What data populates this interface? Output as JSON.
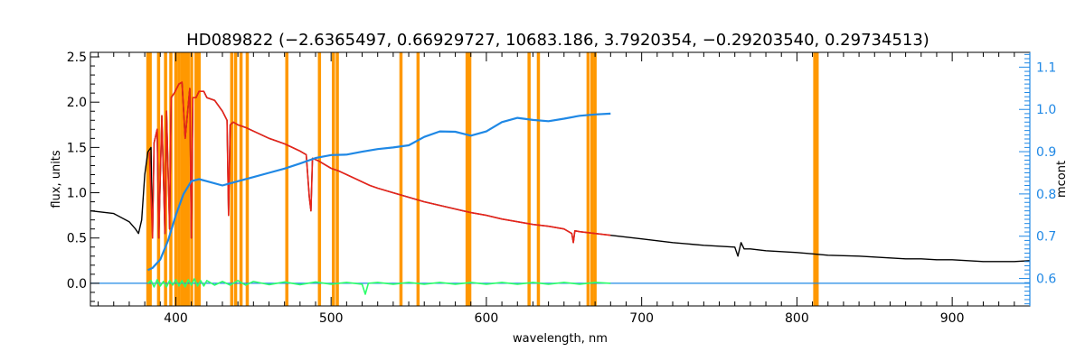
{
  "chart_data": {
    "type": "line",
    "title": "HD089822    (−2.6365497, 0.66929727, 10683.186, 3.7920354, −0.29203540, 0.29734513)",
    "xlabel": "wavelength, nm",
    "ylabel": "flux, units",
    "y2label": "mcont",
    "xlim": [
      345,
      950
    ],
    "ylim": [
      -0.25,
      2.55
    ],
    "y2lim": [
      0.535,
      1.135
    ],
    "x_ticks": [
      400,
      500,
      600,
      700,
      800,
      900
    ],
    "y_ticks": [
      0.0,
      0.5,
      1.0,
      1.5,
      2.0,
      2.5
    ],
    "y2_ticks": [
      0.6,
      0.7,
      0.8,
      0.9,
      1.0,
      1.1
    ],
    "x_tick_labels": [
      "400",
      "500",
      "600",
      "700",
      "800",
      "900"
    ],
    "y_tick_labels": [
      "0.0",
      "0.5",
      "1.0",
      "1.5",
      "2.0",
      "2.5"
    ],
    "y2_tick_labels": [
      "0.6",
      "0.7",
      "0.8",
      "0.9",
      "1.0",
      "1.1"
    ],
    "colors": {
      "observed": "#000000",
      "model": "#e8231a",
      "continuum": "#1f88e5",
      "residual": "#2bff6a",
      "masks": "#ff9800",
      "right_axis": "#1f88e5"
    },
    "mask_lines": [
      382.0,
      383.5,
      388.9,
      393.4,
      396.8,
      400.0,
      402.0,
      404.0,
      406.0,
      408.0,
      410.2,
      413.0,
      415.0,
      436.0,
      438.5,
      442.0,
      446.0,
      471.5,
      492.5,
      501.5,
      504.0,
      545.0,
      556.0,
      587.6,
      589.3,
      627.5,
      633.5,
      665.5,
      668.0,
      670.0,
      811.5,
      813.0
    ],
    "series": [
      {
        "key": "observed",
        "x": [
          345,
          360,
          370,
          374,
          376,
          378,
          380,
          382,
          384,
          385,
          386,
          388,
          389,
          391,
          393,
          394,
          396,
          397,
          399,
          402,
          404,
          406,
          409,
          410,
          411,
          413,
          415,
          418,
          420,
          425,
          430,
          433,
          434,
          435,
          437,
          440,
          445,
          450,
          455,
          460,
          465,
          470,
          475,
          480,
          484,
          486,
          487,
          488,
          492,
          495,
          500,
          505,
          510,
          515,
          520,
          525,
          530,
          540,
          550,
          560,
          570,
          580,
          590,
          600,
          610,
          620,
          630,
          640,
          650,
          655,
          656,
          657,
          660,
          670,
          680,
          690,
          700,
          720,
          740,
          760,
          762,
          764,
          766,
          770,
          780,
          800,
          820,
          840,
          860,
          870,
          880,
          890,
          900,
          910,
          920,
          930,
          940,
          950
        ],
        "y": [
          0.8,
          0.77,
          0.68,
          0.6,
          0.55,
          0.7,
          1.2,
          1.45,
          1.5,
          0.5,
          1.55,
          1.7,
          0.5,
          1.85,
          0.55,
          1.9,
          0.6,
          2.05,
          2.1,
          2.2,
          2.22,
          1.6,
          2.15,
          0.5,
          2.05,
          2.05,
          2.12,
          2.12,
          2.05,
          2.02,
          1.9,
          1.8,
          0.75,
          1.75,
          1.78,
          1.75,
          1.72,
          1.68,
          1.64,
          1.6,
          1.57,
          1.54,
          1.5,
          1.46,
          1.42,
          0.95,
          0.8,
          1.38,
          1.35,
          1.32,
          1.27,
          1.24,
          1.2,
          1.16,
          1.12,
          1.08,
          1.05,
          1.0,
          0.95,
          0.9,
          0.86,
          0.82,
          0.78,
          0.75,
          0.71,
          0.68,
          0.65,
          0.63,
          0.6,
          0.55,
          0.45,
          0.58,
          0.57,
          0.55,
          0.53,
          0.51,
          0.49,
          0.45,
          0.42,
          0.4,
          0.3,
          0.45,
          0.38,
          0.38,
          0.36,
          0.34,
          0.31,
          0.3,
          0.28,
          0.27,
          0.27,
          0.26,
          0.26,
          0.25,
          0.24,
          0.24,
          0.24,
          0.25
        ]
      },
      {
        "key": "model",
        "x": [
          383,
          385,
          386,
          388,
          389,
          391,
          393,
          394,
          396,
          397,
          399,
          402,
          404,
          406,
          409,
          410,
          411,
          413,
          415,
          418,
          420,
          425,
          430,
          433,
          434,
          435,
          437,
          440,
          445,
          450,
          455,
          460,
          465,
          470,
          475,
          480,
          484,
          486,
          487,
          488,
          492,
          495,
          500,
          505,
          510,
          515,
          520,
          525,
          530,
          540,
          550,
          560,
          570,
          580,
          590,
          600,
          610,
          620,
          630,
          640,
          650,
          655,
          656,
          657,
          660,
          670,
          680
        ],
        "y": [
          1.45,
          0.5,
          1.55,
          1.7,
          0.5,
          1.85,
          0.55,
          1.9,
          0.6,
          2.05,
          2.1,
          2.2,
          2.22,
          1.6,
          2.15,
          0.5,
          2.05,
          2.05,
          2.12,
          2.12,
          2.05,
          2.02,
          1.9,
          1.8,
          0.75,
          1.75,
          1.78,
          1.75,
          1.72,
          1.68,
          1.64,
          1.6,
          1.57,
          1.54,
          1.5,
          1.46,
          1.42,
          0.95,
          0.8,
          1.38,
          1.35,
          1.32,
          1.27,
          1.24,
          1.2,
          1.16,
          1.12,
          1.08,
          1.05,
          1.0,
          0.95,
          0.9,
          0.86,
          0.82,
          0.78,
          0.75,
          0.71,
          0.68,
          0.65,
          0.63,
          0.6,
          0.55,
          0.45,
          0.58,
          0.57,
          0.55,
          0.53
        ]
      },
      {
        "key": "continuum",
        "axis": "right",
        "x": [
          382,
          385,
          390,
          395,
          400,
          405,
          410,
          415,
          420,
          430,
          440,
          450,
          460,
          470,
          480,
          490,
          500,
          510,
          520,
          530,
          540,
          550,
          560,
          570,
          580,
          590,
          600,
          610,
          620,
          630,
          640,
          650,
          660,
          670,
          680
        ],
        "y": [
          0.62,
          0.625,
          0.645,
          0.69,
          0.75,
          0.8,
          0.83,
          0.835,
          0.83,
          0.82,
          0.83,
          0.84,
          0.85,
          0.86,
          0.872,
          0.885,
          0.892,
          0.893,
          0.9,
          0.906,
          0.91,
          0.915,
          0.935,
          0.948,
          0.947,
          0.938,
          0.948,
          0.97,
          0.98,
          0.975,
          0.972,
          0.978,
          0.985,
          0.988,
          0.99
        ]
      },
      {
        "key": "residual",
        "x": [
          382,
          384,
          386,
          388,
          390,
          392,
          394,
          396,
          398,
          400,
          402,
          404,
          406,
          408,
          410,
          412,
          414,
          416,
          418,
          420,
          425,
          430,
          435,
          440,
          445,
          450,
          460,
          470,
          480,
          490,
          500,
          510,
          520,
          522,
          524,
          530,
          540,
          550,
          560,
          570,
          580,
          590,
          600,
          610,
          620,
          630,
          640,
          650,
          660,
          670,
          680
        ],
        "y": [
          0.0,
          0.03,
          -0.04,
          0.04,
          -0.03,
          0.02,
          -0.04,
          0.03,
          -0.02,
          0.04,
          -0.03,
          0.03,
          -0.04,
          0.04,
          -0.02,
          0.05,
          -0.03,
          0.03,
          -0.03,
          0.03,
          -0.02,
          0.02,
          -0.02,
          0.03,
          -0.02,
          0.02,
          -0.015,
          0.015,
          -0.015,
          0.015,
          -0.01,
          0.01,
          -0.01,
          -0.12,
          0.0,
          0.01,
          -0.01,
          0.01,
          -0.01,
          0.01,
          -0.01,
          0.01,
          -0.01,
          0.01,
          -0.01,
          0.01,
          -0.01,
          0.01,
          -0.01,
          0.01,
          0.0
        ]
      },
      {
        "key": "baseline",
        "x": [
          345,
          950
        ],
        "y": [
          0.0,
          0.0
        ]
      }
    ]
  }
}
